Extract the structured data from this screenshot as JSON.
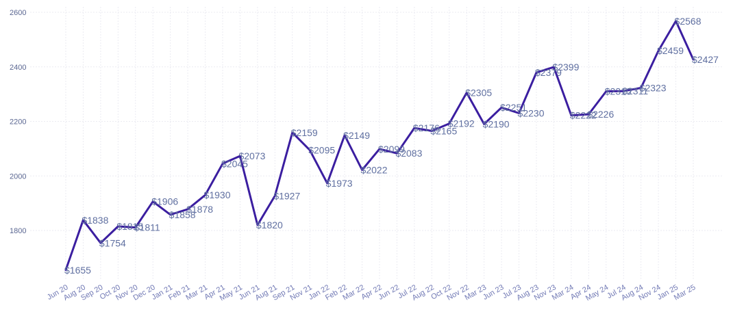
{
  "chart_data": {
    "type": "line",
    "title": "",
    "xlabel": "",
    "ylabel": "",
    "ylim": [
      1590,
      2620
    ],
    "yticks": [
      1800,
      2000,
      2200,
      2400,
      2600
    ],
    "grid": true,
    "line_color": "#3b1ea0",
    "label_color": "#5f6fa0",
    "value_prefix": "$",
    "x": [
      "Jun 20",
      "Aug 20",
      "Sep 20",
      "Oct 20",
      "Nov 20",
      "Dec 20",
      "Jan 21",
      "Feb 21",
      "Mar 21",
      "Apr 21",
      "May 21",
      "Jun 21",
      "Aug 21",
      "Sep 21",
      "Nov 21",
      "Jan 22",
      "Feb 22",
      "Mar 22",
      "Apr 22",
      "Jun 22",
      "Jul 22",
      "Aug 22",
      "Oct 22",
      "Nov 22",
      "Mar 23",
      "Jun 23",
      "Jul 23",
      "Aug 23",
      "Nov 23",
      "Mar 24",
      "Apr 24",
      "May 24",
      "Jul 24",
      "Aug 24",
      "Nov 24",
      "Jan 25",
      "Mar 25"
    ],
    "series": [
      {
        "values": [
          1655,
          1838,
          1754,
          1815,
          1811,
          1906,
          1858,
          1878,
          1930,
          2045,
          2073,
          1820,
          1927,
          2159,
          2095,
          1973,
          2149,
          2022,
          2099,
          2083,
          2176,
          2165,
          2192,
          2305,
          2190,
          2251,
          2230,
          2379,
          2399,
          2222,
          2226,
          2310,
          2311,
          2323,
          2459,
          2568,
          2427
        ]
      }
    ]
  }
}
